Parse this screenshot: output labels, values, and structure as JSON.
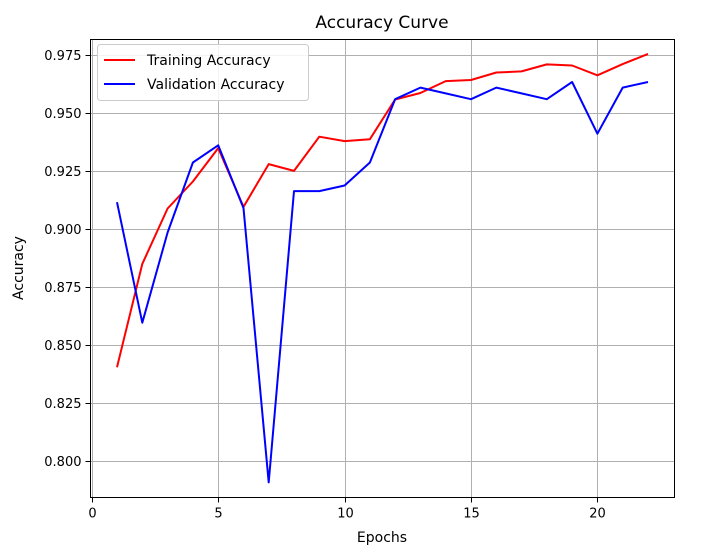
{
  "chart_data": {
    "type": "line",
    "title": "Accuracy Curve",
    "xlabel": "Epochs",
    "ylabel": "Accuracy",
    "xlim": [
      -0.05,
      23.05
    ],
    "ylim": [
      0.7845,
      0.9815
    ],
    "xticks": [
      0,
      5,
      10,
      15,
      20
    ],
    "yticks": [
      0.8,
      0.825,
      0.85,
      0.875,
      0.9,
      0.925,
      0.95,
      0.975
    ],
    "ytick_labels": [
      "0.800",
      "0.825",
      "0.850",
      "0.875",
      "0.900",
      "0.925",
      "0.950",
      "0.975"
    ],
    "grid": true,
    "legend_position": "top-left",
    "x": [
      1,
      2,
      3,
      4,
      5,
      6,
      7,
      8,
      9,
      10,
      11,
      12,
      13,
      14,
      15,
      16,
      17,
      18,
      19,
      20,
      21,
      22
    ],
    "series": [
      {
        "name": "Training Accuracy",
        "color": "#ff0000",
        "values": [
          0.8405,
          0.885,
          0.9088,
          0.9204,
          0.9348,
          0.9095,
          0.9279,
          0.925,
          0.9397,
          0.9378,
          0.9386,
          0.9557,
          0.9585,
          0.9636,
          0.9641,
          0.9673,
          0.9678,
          0.9708,
          0.9703,
          0.9661,
          0.9709,
          0.9753
        ]
      },
      {
        "name": "Validation Accuracy",
        "color": "#0000ff",
        "values": [
          0.9115,
          0.8597,
          0.8985,
          0.9286,
          0.936,
          0.909,
          0.791,
          0.9163,
          0.9163,
          0.9187,
          0.9286,
          0.9558,
          0.9608,
          0.9583,
          0.9558,
          0.9608,
          0.9583,
          0.9558,
          0.9632,
          0.941,
          0.9608,
          0.9632
        ]
      }
    ]
  }
}
